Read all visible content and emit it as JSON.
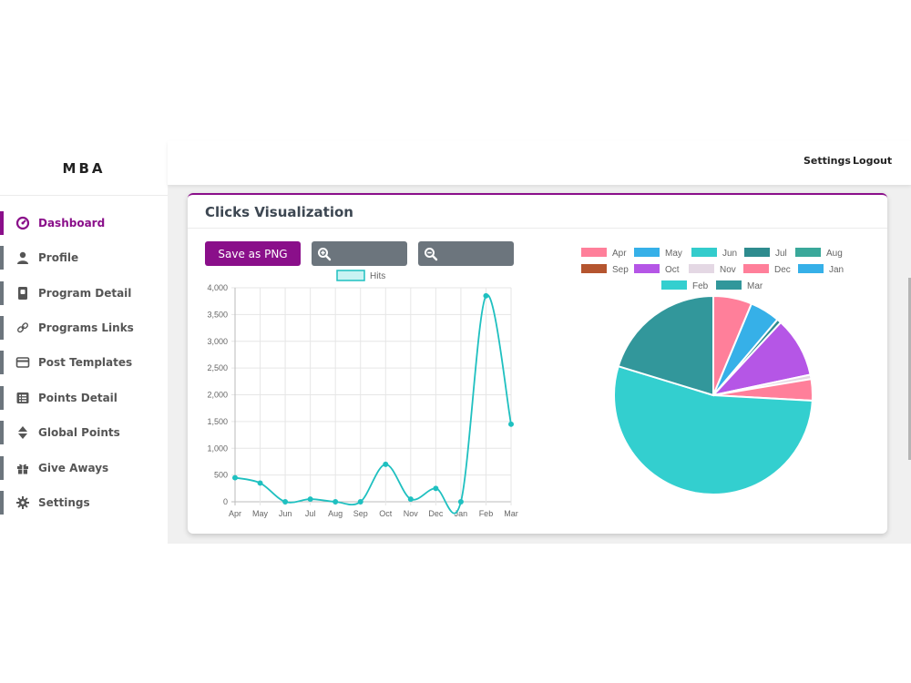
{
  "brand": "MBA",
  "topbar": {
    "settings": "Settings",
    "logout": "Logout"
  },
  "sidebar": {
    "items": [
      {
        "label": "Dashboard",
        "icon": "dashboard-icon",
        "active": true
      },
      {
        "label": "Profile",
        "icon": "user-icon"
      },
      {
        "label": "Program Detail",
        "icon": "document-icon"
      },
      {
        "label": "Programs Links",
        "icon": "link-icon"
      },
      {
        "label": "Post Templates",
        "icon": "card-icon"
      },
      {
        "label": "Points Detail",
        "icon": "list-icon"
      },
      {
        "label": "Global Points",
        "icon": "sort-icon"
      },
      {
        "label": "Give Aways",
        "icon": "gift-icon"
      },
      {
        "label": "Settings",
        "icon": "gear-icon"
      }
    ]
  },
  "card": {
    "title": "Clicks Visualization",
    "buttons": {
      "save": "Save as PNG",
      "zoom_in_icon": "zoom-in-icon",
      "zoom_out_icon": "zoom-out-icon"
    }
  },
  "colors": {
    "accent": "#8a0f8a",
    "secondary": "#6c757d",
    "line": "#1fc0c0"
  },
  "chart_data": [
    {
      "type": "line",
      "series": [
        {
          "name": "Hits",
          "values": [
            450,
            350,
            0,
            50,
            0,
            0,
            700,
            50,
            250,
            0,
            3850,
            1450
          ]
        }
      ],
      "categories": [
        "Apr",
        "May",
        "Jun",
        "Jul",
        "Aug",
        "Sep",
        "Oct",
        "Nov",
        "Dec",
        "Jan",
        "Feb",
        "Mar"
      ],
      "yticks": [
        "0",
        "500",
        "1,000",
        "1,500",
        "2,000",
        "2,500",
        "3,000",
        "3,500",
        "4,000"
      ],
      "ylim": [
        0,
        4000
      ],
      "grid": true,
      "legend": "top-center"
    },
    {
      "type": "pie",
      "labels": [
        "Apr",
        "May",
        "Jun",
        "Jul",
        "Aug",
        "Sep",
        "Oct",
        "Nov",
        "Dec",
        "Jan",
        "Feb",
        "Mar"
      ],
      "values": [
        450,
        350,
        0,
        50,
        0,
        0,
        700,
        50,
        250,
        0,
        3850,
        1450
      ],
      "colors": [
        "#ff7f9a",
        "#36b0e8",
        "#33cccc",
        "#2e8b8e",
        "#3aa89a",
        "#b5552f",
        "#b556e6",
        "#e4d8e4",
        "#ff7f9a",
        "#36b0e8",
        "#33cfcf",
        "#32979b"
      ],
      "legend": "top"
    }
  ]
}
